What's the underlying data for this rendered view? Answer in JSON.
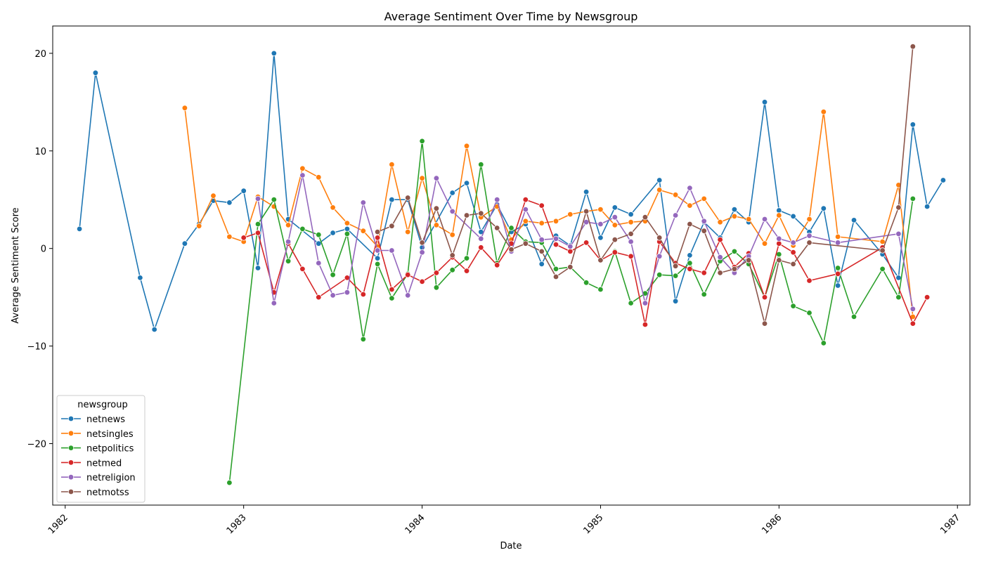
{
  "chart_data": {
    "type": "line",
    "title": "Average Sentiment Over Time by Newsgroup",
    "xlabel": "Date",
    "ylabel": "Average Sentiment Score",
    "xlim": [
      1981.93,
      1987.07
    ],
    "ylim": [
      -26.3,
      22.8
    ],
    "x_ticks": [
      1982,
      1983,
      1984,
      1985,
      1986,
      1987
    ],
    "y_ticks": [
      -20,
      -10,
      0,
      10,
      20
    ],
    "legend_title": "newsgroup",
    "legend_position": "lower-left",
    "grid": false,
    "series": [
      {
        "name": "netnews",
        "color": "#1f77b4",
        "points": [
          [
            1982.08,
            2.0
          ],
          [
            1982.17,
            18.0
          ],
          [
            1982.42,
            -3.0
          ],
          [
            1982.5,
            -8.3
          ],
          [
            1982.67,
            0.5
          ],
          [
            1982.75,
            2.5
          ],
          [
            1982.83,
            4.9
          ],
          [
            1982.92,
            4.7
          ],
          [
            1983.0,
            5.9
          ],
          [
            1983.08,
            -2.0
          ],
          [
            1983.17,
            20.0
          ],
          [
            1983.25,
            3.0
          ],
          [
            1983.42,
            0.5
          ],
          [
            1983.5,
            1.6
          ],
          [
            1983.58,
            2.0
          ],
          [
            1983.75,
            -1.0
          ],
          [
            1983.83,
            5.0
          ],
          [
            1983.92,
            5.0
          ],
          [
            1984.0,
            0.1
          ],
          [
            1984.17,
            5.7
          ],
          [
            1984.25,
            6.7
          ],
          [
            1984.33,
            1.7
          ],
          [
            1984.42,
            4.5
          ],
          [
            1984.5,
            1.7
          ],
          [
            1984.58,
            2.5
          ],
          [
            1984.67,
            -1.6
          ],
          [
            1984.75,
            1.3
          ],
          [
            1984.83,
            0.3
          ],
          [
            1984.92,
            5.8
          ],
          [
            1985.0,
            1.1
          ],
          [
            1985.08,
            4.2
          ],
          [
            1985.17,
            3.5
          ],
          [
            1985.33,
            7.0
          ],
          [
            1985.42,
            -5.4
          ],
          [
            1985.5,
            -0.7
          ],
          [
            1985.58,
            2.7
          ],
          [
            1985.67,
            1.1
          ],
          [
            1985.75,
            4.0
          ],
          [
            1985.83,
            2.7
          ],
          [
            1985.92,
            15.0
          ],
          [
            1986.0,
            3.9
          ],
          [
            1986.08,
            3.3
          ],
          [
            1986.17,
            1.7
          ],
          [
            1986.25,
            4.1
          ],
          [
            1986.33,
            -3.8
          ],
          [
            1986.42,
            2.9
          ],
          [
            1986.58,
            -0.6
          ],
          [
            1986.67,
            -3.0
          ],
          [
            1986.75,
            12.7
          ],
          [
            1986.83,
            4.3
          ],
          [
            1986.92,
            7.0
          ]
        ]
      },
      {
        "name": "netsingles",
        "color": "#ff7f0e",
        "points": [
          [
            1982.67,
            14.4
          ],
          [
            1982.75,
            2.3
          ],
          [
            1982.83,
            5.4
          ],
          [
            1982.92,
            1.2
          ],
          [
            1983.0,
            0.7
          ],
          [
            1983.08,
            5.3
          ],
          [
            1983.17,
            4.3
          ],
          [
            1983.25,
            2.4
          ],
          [
            1983.33,
            8.2
          ],
          [
            1983.42,
            7.3
          ],
          [
            1983.5,
            4.2
          ],
          [
            1983.58,
            2.6
          ],
          [
            1983.67,
            1.8
          ],
          [
            1983.75,
            0.2
          ],
          [
            1983.83,
            8.6
          ],
          [
            1983.92,
            1.7
          ],
          [
            1984.0,
            7.2
          ],
          [
            1984.08,
            2.4
          ],
          [
            1984.17,
            1.4
          ],
          [
            1984.25,
            10.5
          ],
          [
            1984.33,
            3.2
          ],
          [
            1984.42,
            4.3
          ],
          [
            1984.5,
            0.9
          ],
          [
            1984.58,
            2.8
          ],
          [
            1984.67,
            2.6
          ],
          [
            1984.75,
            2.8
          ],
          [
            1984.83,
            3.5
          ],
          [
            1984.92,
            3.8
          ],
          [
            1985.0,
            4.0
          ],
          [
            1985.08,
            2.4
          ],
          [
            1985.17,
            2.7
          ],
          [
            1985.25,
            2.8
          ],
          [
            1985.33,
            6.0
          ],
          [
            1985.42,
            5.5
          ],
          [
            1985.5,
            4.4
          ],
          [
            1985.58,
            5.1
          ],
          [
            1985.67,
            2.7
          ],
          [
            1985.75,
            3.3
          ],
          [
            1985.83,
            3.0
          ],
          [
            1985.92,
            0.5
          ],
          [
            1986.0,
            3.4
          ],
          [
            1986.08,
            0.3
          ],
          [
            1986.17,
            3.0
          ],
          [
            1986.25,
            14.0
          ],
          [
            1986.33,
            1.2
          ],
          [
            1986.58,
            0.7
          ],
          [
            1986.67,
            6.5
          ],
          [
            1986.75,
            -7.0
          ]
        ]
      },
      {
        "name": "netpolitics",
        "color": "#2ca02c",
        "points": [
          [
            1982.92,
            -24.0
          ],
          [
            1983.08,
            2.5
          ],
          [
            1983.17,
            5.0
          ],
          [
            1983.25,
            -1.3
          ],
          [
            1983.33,
            2.0
          ],
          [
            1983.42,
            1.4
          ],
          [
            1983.5,
            -2.7
          ],
          [
            1983.58,
            1.5
          ],
          [
            1983.67,
            -9.3
          ],
          [
            1983.75,
            -1.6
          ],
          [
            1983.83,
            -5.1
          ],
          [
            1983.92,
            -2.6
          ],
          [
            1984.0,
            11.0
          ],
          [
            1984.08,
            -4.0
          ],
          [
            1984.17,
            -2.2
          ],
          [
            1984.25,
            -1.0
          ],
          [
            1984.33,
            8.6
          ],
          [
            1984.42,
            -1.5
          ],
          [
            1984.5,
            2.1
          ],
          [
            1984.58,
            0.7
          ],
          [
            1984.67,
            0.6
          ],
          [
            1984.75,
            -2.1
          ],
          [
            1984.83,
            -1.9
          ],
          [
            1984.92,
            -3.5
          ],
          [
            1985.0,
            -4.2
          ],
          [
            1985.08,
            -0.3
          ],
          [
            1985.17,
            -5.6
          ],
          [
            1985.25,
            -4.6
          ],
          [
            1985.33,
            -2.7
          ],
          [
            1985.42,
            -2.8
          ],
          [
            1985.5,
            -1.5
          ],
          [
            1985.58,
            -4.7
          ],
          [
            1985.67,
            -1.3
          ],
          [
            1985.75,
            -0.3
          ],
          [
            1985.83,
            -1.6
          ],
          [
            1985.92,
            -5.0
          ],
          [
            1986.0,
            -0.6
          ],
          [
            1986.08,
            -5.9
          ],
          [
            1986.17,
            -6.6
          ],
          [
            1986.25,
            -9.7
          ],
          [
            1986.33,
            -2.0
          ],
          [
            1986.42,
            -7.0
          ],
          [
            1986.58,
            -2.1
          ],
          [
            1986.67,
            -5.0
          ],
          [
            1986.75,
            5.1
          ]
        ]
      },
      {
        "name": "netmed",
        "color": "#d62728",
        "points": [
          [
            1983.0,
            1.1
          ],
          [
            1983.08,
            1.6
          ],
          [
            1983.17,
            -4.5
          ],
          [
            1983.25,
            0.5
          ],
          [
            1983.33,
            -2.1
          ],
          [
            1983.42,
            -5.0
          ],
          [
            1983.58,
            -3.0
          ],
          [
            1983.67,
            -4.7
          ],
          [
            1983.75,
            1.1
          ],
          [
            1983.83,
            -4.2
          ],
          [
            1983.92,
            -2.7
          ],
          [
            1984.0,
            -3.4
          ],
          [
            1984.08,
            -2.5
          ],
          [
            1984.17,
            -0.9
          ],
          [
            1984.25,
            -2.3
          ],
          [
            1984.33,
            0.1
          ],
          [
            1984.42,
            -1.7
          ],
          [
            1984.5,
            0.5
          ],
          [
            1984.58,
            5.0
          ],
          [
            1984.67,
            4.4
          ],
          [
            1984.75,
            0.4
          ],
          [
            1984.83,
            -0.3
          ],
          [
            1984.92,
            0.6
          ],
          [
            1985.0,
            -1.2
          ],
          [
            1985.08,
            -0.4
          ],
          [
            1985.17,
            -0.8
          ],
          [
            1985.25,
            -7.8
          ],
          [
            1985.33,
            0.7
          ],
          [
            1985.42,
            -1.5
          ],
          [
            1985.5,
            -2.1
          ],
          [
            1985.58,
            -2.5
          ],
          [
            1985.67,
            0.9
          ],
          [
            1985.75,
            -1.9
          ],
          [
            1985.83,
            -0.5
          ],
          [
            1985.92,
            -5.0
          ],
          [
            1986.0,
            0.5
          ],
          [
            1986.08,
            -0.4
          ],
          [
            1986.17,
            -3.3
          ],
          [
            1986.33,
            -2.6
          ],
          [
            1986.58,
            0.1
          ],
          [
            1986.75,
            -7.7
          ],
          [
            1986.83,
            -5.0
          ]
        ]
      },
      {
        "name": "netreligion",
        "color": "#9467bd",
        "points": [
          [
            1983.08,
            5.1
          ],
          [
            1983.17,
            -5.6
          ],
          [
            1983.25,
            0.7
          ],
          [
            1983.33,
            7.5
          ],
          [
            1983.42,
            -1.5
          ],
          [
            1983.5,
            -4.8
          ],
          [
            1983.58,
            -4.5
          ],
          [
            1983.67,
            4.7
          ],
          [
            1983.75,
            -0.2
          ],
          [
            1983.83,
            -0.2
          ],
          [
            1983.92,
            -4.8
          ],
          [
            1984.0,
            -0.4
          ],
          [
            1984.08,
            7.2
          ],
          [
            1984.17,
            3.8
          ],
          [
            1984.33,
            1.0
          ],
          [
            1984.42,
            5.0
          ],
          [
            1984.5,
            -0.3
          ],
          [
            1984.58,
            4.0
          ],
          [
            1984.67,
            0.9
          ],
          [
            1984.75,
            1.0
          ],
          [
            1984.83,
            0.2
          ],
          [
            1984.92,
            2.7
          ],
          [
            1985.0,
            2.5
          ],
          [
            1985.08,
            3.2
          ],
          [
            1985.17,
            0.7
          ],
          [
            1985.25,
            -5.6
          ],
          [
            1985.33,
            -0.8
          ],
          [
            1985.42,
            3.4
          ],
          [
            1985.5,
            6.2
          ],
          [
            1985.58,
            2.8
          ],
          [
            1985.67,
            -0.9
          ],
          [
            1985.75,
            -2.5
          ],
          [
            1985.83,
            -0.8
          ],
          [
            1985.92,
            3.0
          ],
          [
            1986.0,
            1.0
          ],
          [
            1986.08,
            0.6
          ],
          [
            1986.17,
            1.3
          ],
          [
            1986.33,
            0.6
          ],
          [
            1986.67,
            1.5
          ],
          [
            1986.75,
            -6.2
          ]
        ]
      },
      {
        "name": "netmotss",
        "color": "#8c564b",
        "points": [
          [
            1983.75,
            1.7
          ],
          [
            1983.83,
            2.3
          ],
          [
            1983.92,
            5.2
          ],
          [
            1984.0,
            0.6
          ],
          [
            1984.08,
            4.1
          ],
          [
            1984.17,
            -0.7
          ],
          [
            1984.25,
            3.4
          ],
          [
            1984.33,
            3.6
          ],
          [
            1984.42,
            2.1
          ],
          [
            1984.5,
            -0.1
          ],
          [
            1984.58,
            0.5
          ],
          [
            1984.67,
            -0.3
          ],
          [
            1984.75,
            -2.9
          ],
          [
            1984.83,
            -1.9
          ],
          [
            1984.92,
            3.8
          ],
          [
            1985.0,
            -1.2
          ],
          [
            1985.08,
            0.9
          ],
          [
            1985.17,
            1.5
          ],
          [
            1985.25,
            3.2
          ],
          [
            1985.33,
            1.1
          ],
          [
            1985.42,
            -1.8
          ],
          [
            1985.5,
            2.5
          ],
          [
            1985.58,
            1.8
          ],
          [
            1985.67,
            -2.5
          ],
          [
            1985.75,
            -2.1
          ],
          [
            1985.83,
            -1.2
          ],
          [
            1985.92,
            -7.7
          ],
          [
            1986.0,
            -1.2
          ],
          [
            1986.08,
            -1.6
          ],
          [
            1986.17,
            0.6
          ],
          [
            1986.58,
            -0.2
          ],
          [
            1986.67,
            4.2
          ],
          [
            1986.75,
            20.7
          ]
        ]
      }
    ]
  }
}
